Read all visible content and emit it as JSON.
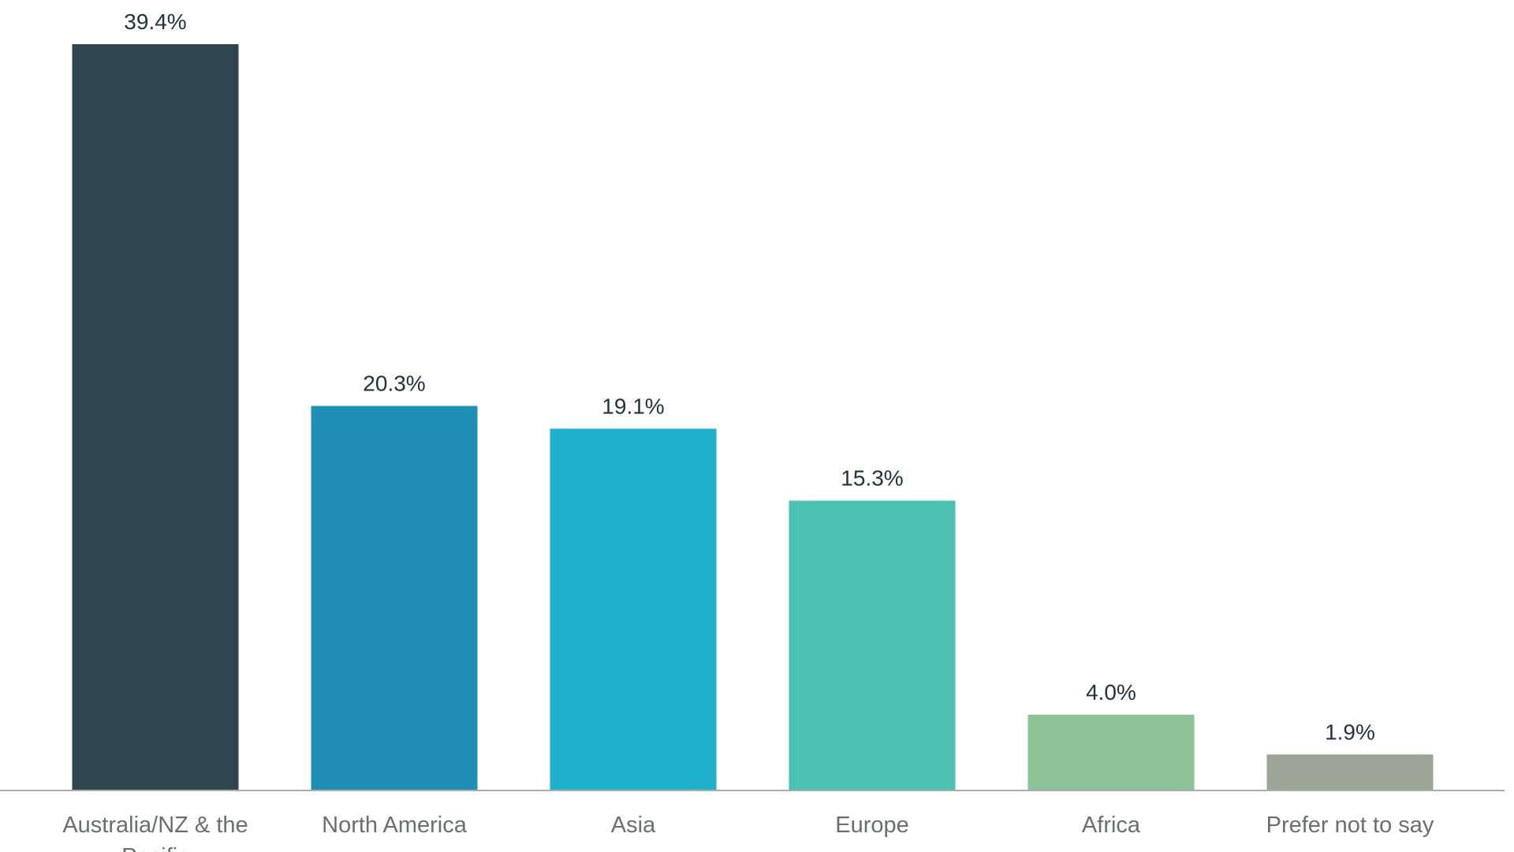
{
  "chart_data": {
    "type": "bar",
    "categories": [
      [
        "Australia/NZ & the",
        "Pacific"
      ],
      [
        "North America"
      ],
      [
        "Asia"
      ],
      [
        "Europe"
      ],
      [
        "Africa"
      ],
      [
        "Prefer not to say"
      ]
    ],
    "values": [
      39.4,
      20.3,
      19.1,
      15.3,
      4.0,
      1.9
    ],
    "value_labels": [
      "39.4%",
      "20.3%",
      "19.1%",
      "15.3%",
      "4.0%",
      "1.9%"
    ],
    "colors": [
      "#2f4651",
      "#1f8fb5",
      "#1fb1cb",
      "#4dc2b4",
      "#8dc394",
      "#9aa597"
    ],
    "title": "",
    "xlabel": "",
    "ylabel": "",
    "ylim": [
      0,
      39.4
    ],
    "grid": false,
    "legend": "none"
  }
}
